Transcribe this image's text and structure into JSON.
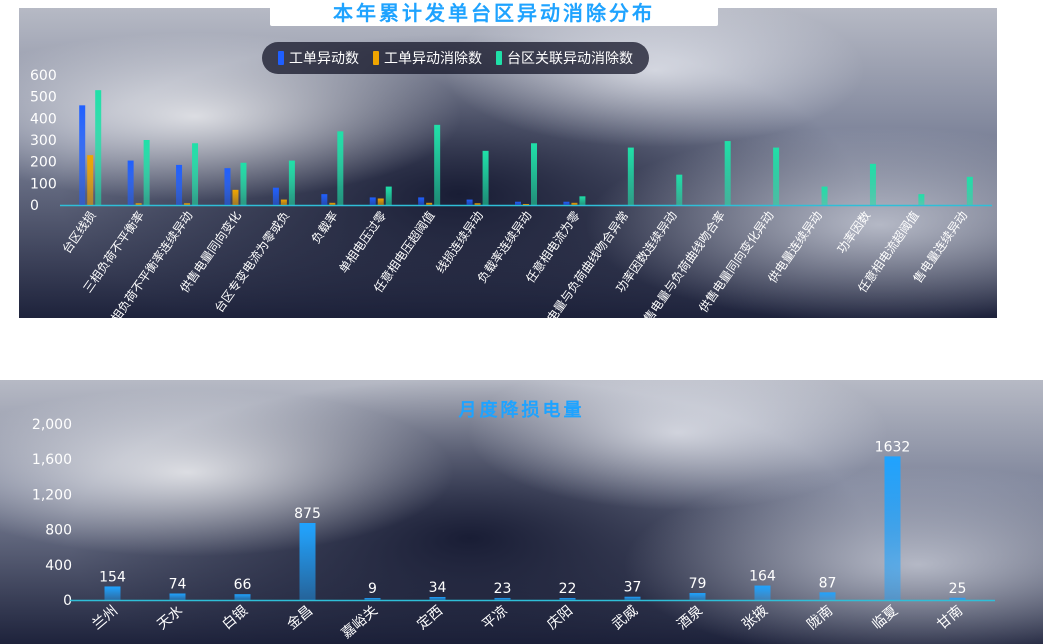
{
  "chart_data": [
    {
      "type": "bar",
      "title": "本年累计发单台区异动消除分布",
      "xlabel": "",
      "ylabel": "",
      "ylim": [
        0,
        600
      ],
      "yticks": [
        0,
        100,
        200,
        300,
        400,
        500,
        600
      ],
      "legend_position": "top",
      "categories": [
        "台区线损",
        "三相负荷不平衡率",
        "三相负荷不平衡率连续异动",
        "供售电量同向变化",
        "台区专变电流为零或负",
        "负载率",
        "单相电压过零",
        "任意相电压超阈值",
        "线损连续异动",
        "负载率连续异动",
        "任意相电流为零",
        "供电量与负荷曲线吻合异常",
        "功率因数连续异动",
        "售电量与负荷曲线吻合率",
        "供售电量同向变化异动",
        "供电量连续异动",
        "功率因数",
        "任意相电流超阈值",
        "售电量连续异动"
      ],
      "series": [
        {
          "name": "工单异动数",
          "color": "#1f5fff",
          "values": [
            460,
            205,
            185,
            170,
            80,
            50,
            35,
            35,
            25,
            15,
            15,
            0,
            0,
            0,
            0,
            0,
            0,
            0,
            0
          ]
        },
        {
          "name": "工单异动消除数",
          "color": "#f0a500",
          "values": [
            230,
            8,
            8,
            70,
            25,
            10,
            30,
            10,
            8,
            3,
            10,
            0,
            0,
            0,
            0,
            0,
            0,
            0,
            0
          ]
        },
        {
          "name": "台区关联异动消除数",
          "color": "#1fe0a8",
          "values": [
            530,
            300,
            285,
            195,
            205,
            340,
            85,
            370,
            250,
            285,
            40,
            265,
            140,
            295,
            265,
            85,
            190,
            50,
            130
          ]
        }
      ]
    },
    {
      "type": "bar",
      "title": "月度降损电量",
      "xlabel": "",
      "ylabel": "",
      "ylim": [
        0,
        2000
      ],
      "yticks": [
        "0",
        "400",
        "800",
        "1,200",
        "1,600",
        "2,000"
      ],
      "color": "#1fa3ff",
      "categories": [
        "兰州",
        "天水",
        "白银",
        "金昌",
        "嘉峪关",
        "定西",
        "平凉",
        "庆阳",
        "武威",
        "酒泉",
        "张掖",
        "陇南",
        "临夏",
        "甘南"
      ],
      "values": [
        154,
        74,
        66,
        875,
        9,
        34,
        23,
        22,
        37,
        79,
        164,
        87,
        1632,
        25
      ],
      "data_labels": [
        "154",
        "74",
        "66",
        "875",
        "9",
        "34",
        "23",
        "22",
        "37",
        "79",
        "164",
        "87",
        "1632",
        "25"
      ]
    }
  ]
}
